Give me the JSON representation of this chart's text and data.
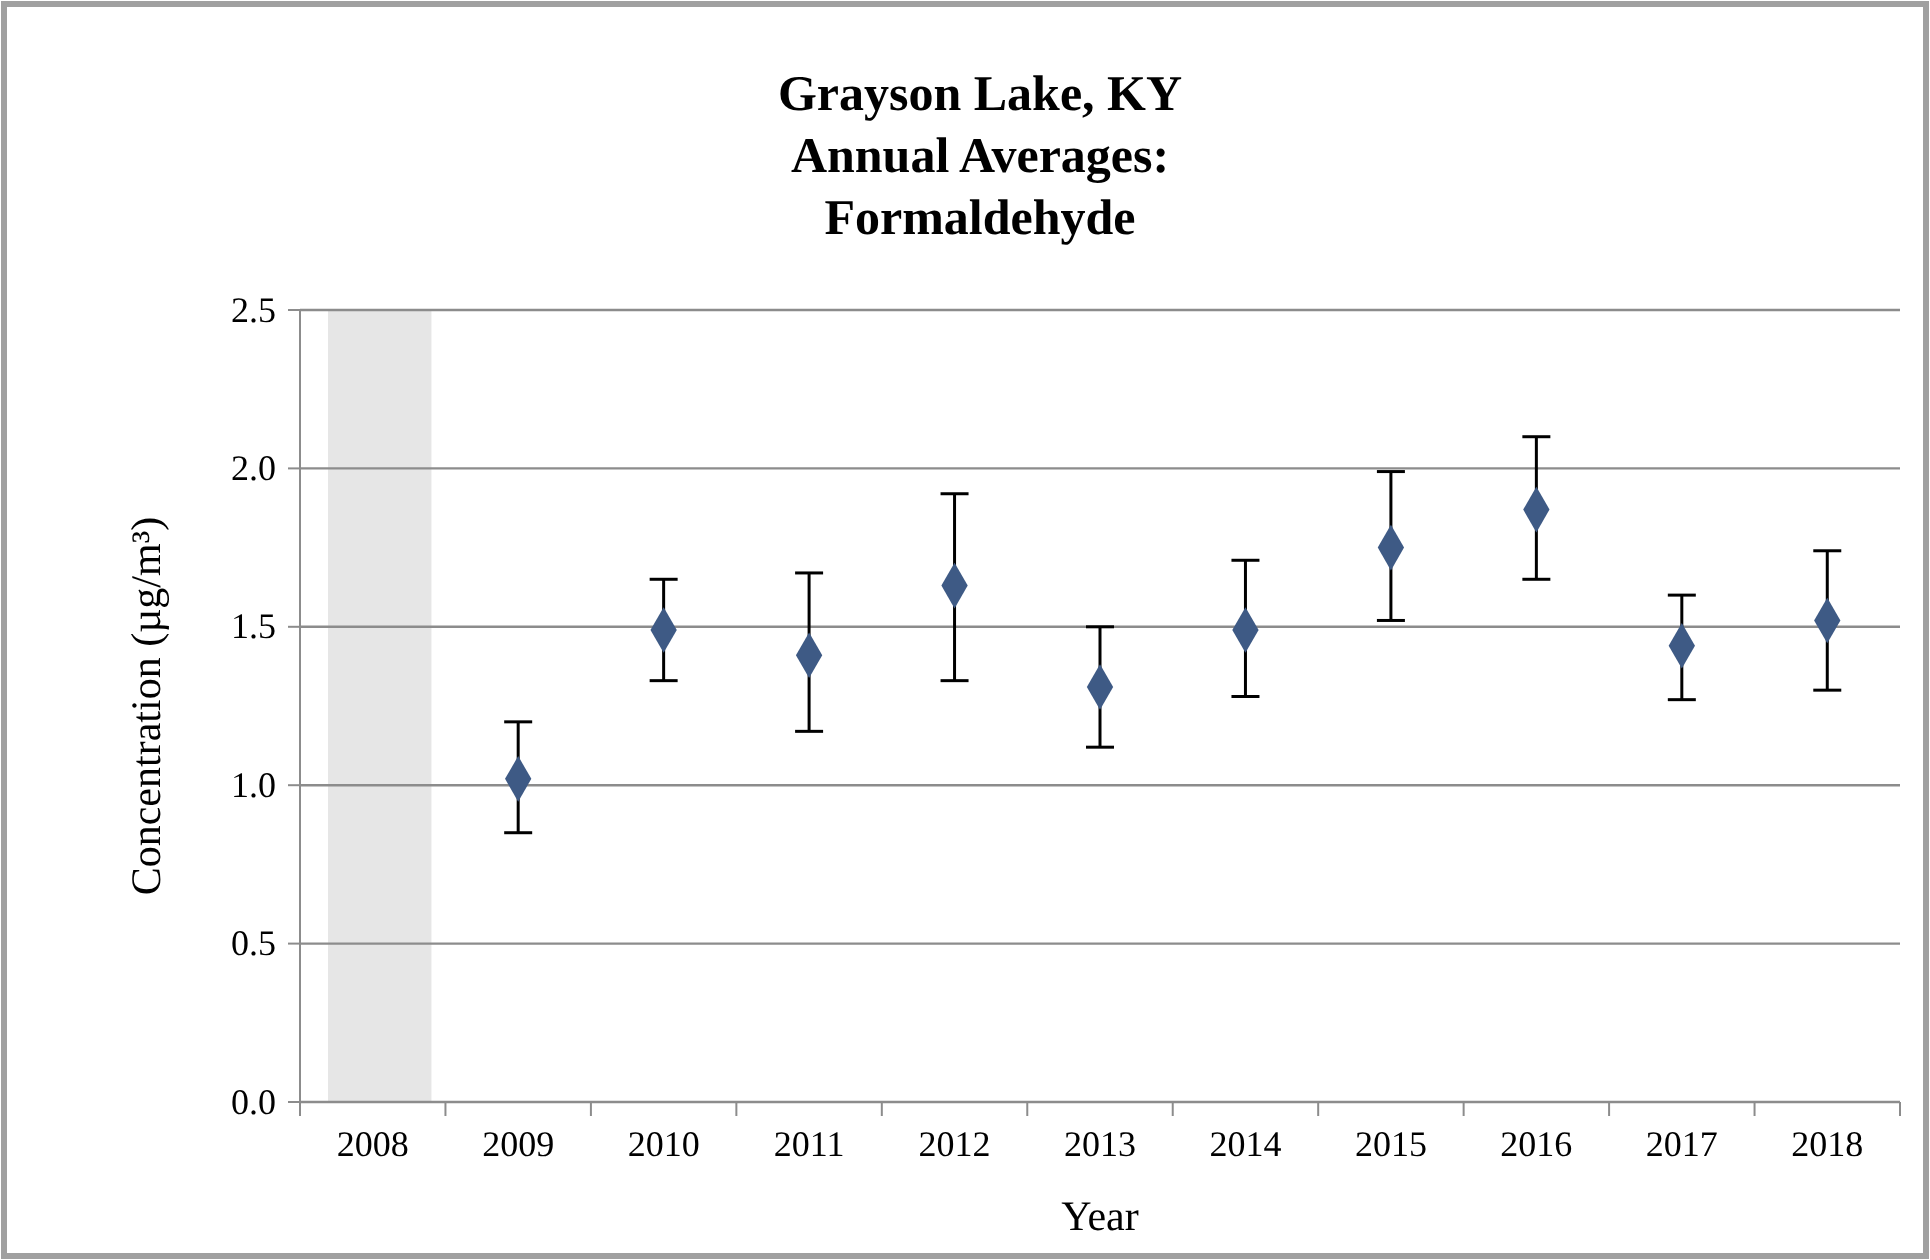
{
  "chart_data": {
    "type": "scatter",
    "title": "Grayson Lake, KY\nAnnual Averages:\nFormaldehyde",
    "xlabel": "Year",
    "ylabel": "Concentration (µg/m³)",
    "categories": [
      "2008",
      "2009",
      "2010",
      "2011",
      "2012",
      "2013",
      "2014",
      "2015",
      "2016",
      "2017",
      "2018"
    ],
    "values": [
      null,
      1.02,
      1.49,
      1.41,
      1.63,
      1.31,
      1.49,
      1.75,
      1.87,
      1.44,
      1.52
    ],
    "errors": [
      null,
      [
        0.85,
        1.2
      ],
      [
        1.33,
        1.65
      ],
      [
        1.17,
        1.67
      ],
      [
        1.33,
        1.92
      ],
      [
        1.12,
        1.5
      ],
      [
        1.28,
        1.71
      ],
      [
        1.52,
        1.99
      ],
      [
        1.65,
        2.1
      ],
      [
        1.27,
        1.6
      ],
      [
        1.3,
        1.74
      ]
    ],
    "color": "#3e5a85",
    "marker": "diamond",
    "bands": [
      {
        "axis": "x",
        "from": "2008",
        "to": "2008",
        "color": "#e6e6e6"
      }
    ],
    "ylim": [
      0,
      2.5
    ],
    "yticks": [
      {
        "value": 0,
        "label": "0.0"
      },
      {
        "value": 0.5,
        "label": "0.5"
      },
      {
        "value": 1,
        "label": "1.0"
      },
      {
        "value": 1.5,
        "label": "1.5"
      },
      {
        "value": 2,
        "label": "2.0"
      },
      {
        "value": 2.5,
        "label": "2.5"
      }
    ],
    "grid": "y"
  }
}
